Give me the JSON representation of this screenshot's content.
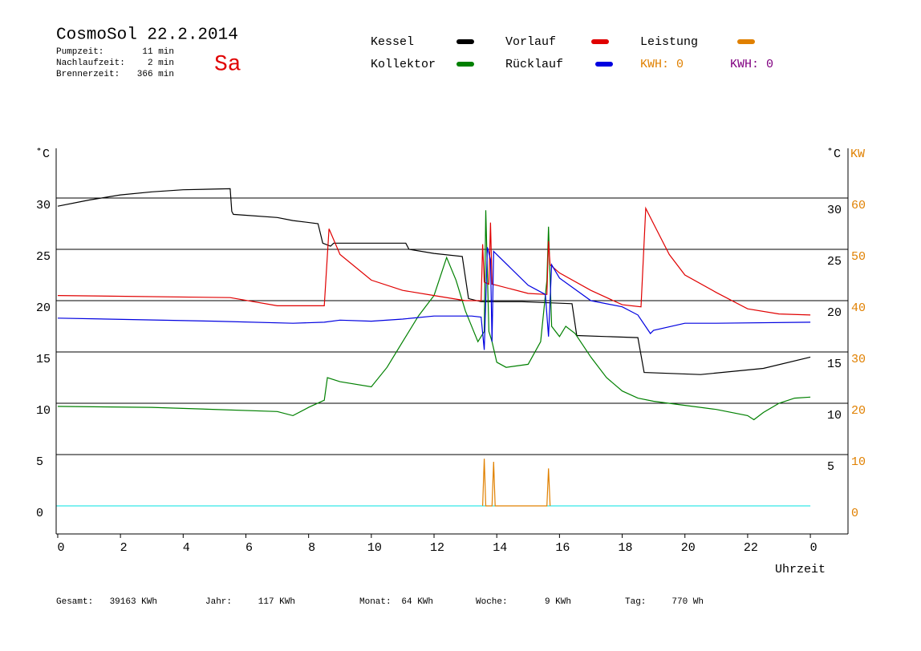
{
  "chart_data": {
    "type": "line",
    "title": "CosmoSol 22.2.2014",
    "day": "Sa",
    "stats": [
      {
        "label": "Pumpzeit:",
        "value": "11 min"
      },
      {
        "label": "Nachlaufzeit:",
        "value": "2 min"
      },
      {
        "label": "Brennerzeit:",
        "value": "366 min"
      }
    ],
    "totals": [
      {
        "label": "Gesamt:",
        "value": "39163 KWh"
      },
      {
        "label": "Jahr:",
        "value": "117 KWh"
      },
      {
        "label": "Monat:",
        "value": "64 KWh"
      },
      {
        "label": "Woche:",
        "value": "9 KWh"
      },
      {
        "label": "Tag:",
        "value": "770 Wh"
      }
    ],
    "kwh_labels": [
      {
        "text": "KWH: 0",
        "color": "#e08000"
      },
      {
        "text": "KWH: 0",
        "color": "#800080"
      }
    ],
    "y_label": "˚C",
    "y_right_label": "˚C",
    "y2_label": "KW",
    "x_label": "Uhrzeit",
    "xlim": [
      -0.05,
      25.2
    ],
    "xticks": [
      0,
      2,
      4,
      6,
      8,
      10,
      12,
      14,
      16,
      18,
      20,
      22,
      {
        "value": 24,
        "label": "0"
      }
    ],
    "ylim": [
      -2.73,
      34.84
    ],
    "yticks": [
      0,
      5,
      10,
      15,
      20,
      25,
      30
    ],
    "yticks_right": [
      5,
      10,
      15,
      20,
      25,
      30
    ],
    "y2lim": [
      -5.47,
      69.69
    ],
    "y2ticks": [
      0,
      10,
      20,
      30,
      40,
      50,
      60
    ],
    "y2_color": "#e08000",
    "zero_line_color": "#00e0e0",
    "grid": true,
    "series": [
      {
        "name": "Kessel",
        "color": "#000000",
        "x": [
          0,
          1,
          2,
          3,
          4,
          5.5,
          5.55,
          5.6,
          7,
          7.5,
          8.3,
          8.45,
          8.7,
          8.8,
          11.1,
          11.2,
          12,
          12.9,
          13.1,
          13.5,
          14.8,
          16.4,
          16.55,
          17.5,
          18.5,
          18.7,
          20.5,
          22.5,
          24
        ],
        "values": [
          29.2,
          29.8,
          30.3,
          30.6,
          30.8,
          30.9,
          28.7,
          28.4,
          28.1,
          27.8,
          27.5,
          25.6,
          25.3,
          25.6,
          25.6,
          25.0,
          24.6,
          24.3,
          20.2,
          19.9,
          19.9,
          19.7,
          16.6,
          16.5,
          16.4,
          13.0,
          12.8,
          13.4,
          14.5
        ]
      },
      {
        "name": "Kollektor",
        "color": "#008000",
        "x": [
          0,
          3,
          7,
          7.5,
          8,
          8.5,
          8.6,
          9,
          10,
          10.5,
          11,
          11.5,
          12,
          12.4,
          12.7,
          13,
          13.4,
          13.6,
          13.65,
          13.75,
          13.85,
          14,
          14.3,
          15,
          15.4,
          15.6,
          15.65,
          15.75,
          16,
          16.2,
          16.5,
          17,
          17.5,
          18,
          18.5,
          19,
          20,
          21,
          22,
          22.2,
          22.5,
          23,
          23.5,
          24
        ],
        "values": [
          9.7,
          9.6,
          9.2,
          8.8,
          9.6,
          10.3,
          12.5,
          12.1,
          11.6,
          13.5,
          16,
          18.5,
          20.5,
          24.2,
          22.0,
          19,
          16,
          17,
          28.8,
          17,
          16,
          14,
          13.5,
          13.8,
          16,
          22,
          27.2,
          17.5,
          16.5,
          17.5,
          16.8,
          14.5,
          12.5,
          11.2,
          10.5,
          10.2,
          9.8,
          9.4,
          8.8,
          8.4,
          9.1,
          10,
          10.5,
          10.6
        ]
      },
      {
        "name": "Vorlauf",
        "color": "#e00000",
        "x": [
          0,
          5.5,
          7,
          8.5,
          8.65,
          9,
          10,
          11,
          12,
          13,
          13.5,
          13.55,
          13.6,
          13.75,
          13.8,
          13.85,
          14,
          15,
          15.6,
          15.65,
          15.7,
          16,
          17,
          18,
          18.6,
          18.75,
          19,
          19.5,
          20,
          21,
          22,
          23,
          24
        ],
        "values": [
          20.5,
          20.3,
          19.5,
          19.5,
          27,
          24.5,
          22,
          21,
          20.5,
          20,
          20,
          25.5,
          21.8,
          21.6,
          27.6,
          21.6,
          21.5,
          20.7,
          20.6,
          25.8,
          23.5,
          22.7,
          21,
          19.6,
          19.4,
          29,
          27.5,
          24.5,
          22.5,
          20.8,
          19.2,
          18.7,
          18.6
        ]
      },
      {
        "name": "Rücklauf",
        "color": "#0000e0",
        "x": [
          0,
          5,
          7.5,
          8.5,
          9,
          10,
          11,
          12,
          13.2,
          13.5,
          13.6,
          13.7,
          13.8,
          13.85,
          13.9,
          14,
          15,
          15.55,
          15.65,
          15.75,
          16,
          17,
          18,
          18.5,
          18.9,
          19,
          20,
          21,
          24
        ],
        "values": [
          18.3,
          18.0,
          17.8,
          17.9,
          18.1,
          18.0,
          18.2,
          18.5,
          18.5,
          18.4,
          15.2,
          25.2,
          24,
          16,
          24.8,
          24.5,
          21.5,
          20.6,
          16.5,
          23.5,
          22.2,
          20,
          19.4,
          18.6,
          16.8,
          17.1,
          17.8,
          17.8,
          17.9
        ]
      },
      {
        "name": "Leistung",
        "color": "#e08000",
        "axis": "y2",
        "x": [
          13.55,
          13.6,
          13.65,
          13.85,
          13.9,
          13.95,
          15.6,
          15.65,
          15.7
        ],
        "values": [
          0,
          9.2,
          0,
          0,
          8.6,
          0,
          0,
          7.3,
          0
        ]
      }
    ]
  }
}
